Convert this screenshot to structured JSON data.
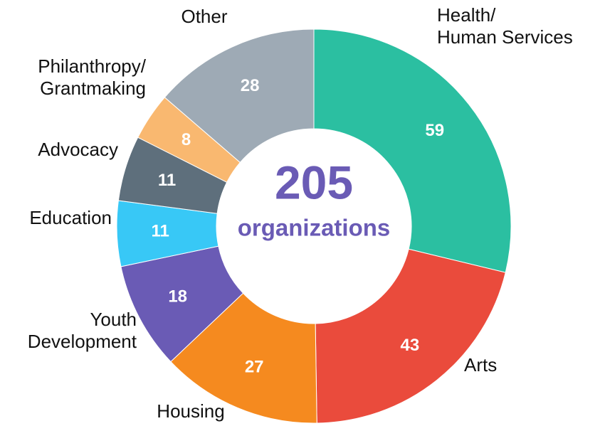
{
  "chart_data": {
    "type": "donut",
    "categories": [
      "Health/\nHuman Services",
      "Arts",
      "Housing",
      "Youth\nDevelopment",
      "Education",
      "Advocacy",
      "Philanthropy/\nGrantmaking",
      "Other"
    ],
    "values": [
      59,
      43,
      27,
      18,
      11,
      11,
      8,
      28
    ],
    "colors": [
      "#2bbfa1",
      "#ea4b3c",
      "#f58a1f",
      "#6a5bb5",
      "#38c8f6",
      "#5e6f7c",
      "#f9b870",
      "#9eaab5"
    ],
    "center_value": 205,
    "center_label": "organizations"
  }
}
